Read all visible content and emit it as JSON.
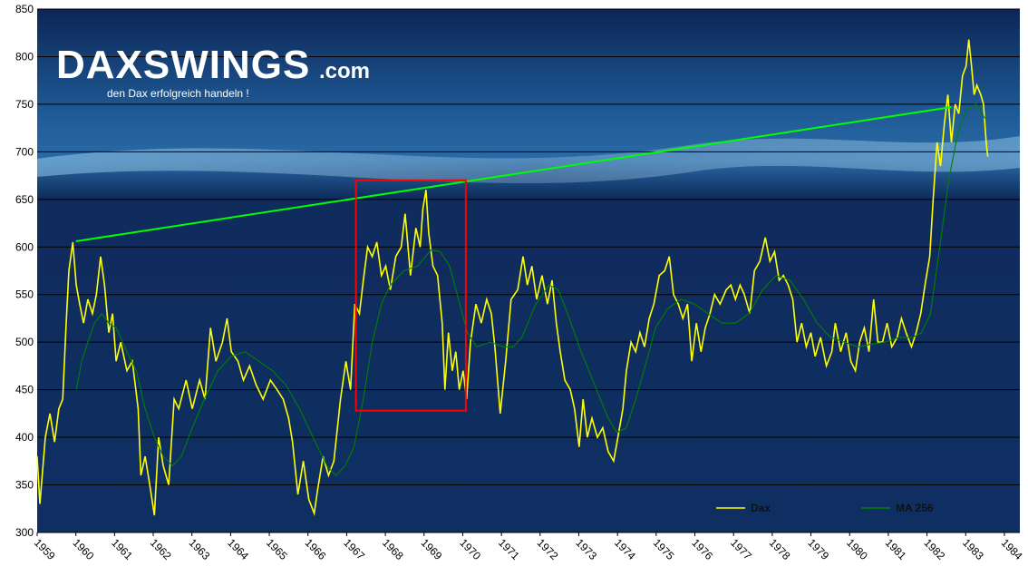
{
  "logo": {
    "name": "DAXSWINGS",
    "suffix": ".com",
    "tagline": "den Dax erfolgreich handeln !"
  },
  "chart_data": {
    "type": "line",
    "xlim": [
      1959,
      1984.4
    ],
    "xticks": [
      1959,
      1960,
      1961,
      1962,
      1963,
      1964,
      1965,
      1966,
      1967,
      1968,
      1969,
      1970,
      1971,
      1972,
      1973,
      1974,
      1975,
      1976,
      1977,
      1978,
      1979,
      1980,
      1981,
      1982,
      1983,
      1984
    ],
    "ylim": [
      300,
      850
    ],
    "yticks": [
      300,
      350,
      400,
      450,
      500,
      550,
      600,
      650,
      700,
      750,
      800,
      850
    ],
    "grid": true,
    "legend": "lower-right",
    "series": [
      {
        "name": "Dax",
        "color": "#ffff00",
        "x": [
          1959.0,
          1959.07,
          1959.21,
          1959.33,
          1959.45,
          1959.56,
          1959.66,
          1959.75,
          1959.82,
          1959.92,
          1960.01,
          1960.1,
          1960.2,
          1960.31,
          1960.43,
          1960.53,
          1960.64,
          1960.74,
          1960.85,
          1960.95,
          1961.04,
          1961.16,
          1961.32,
          1961.46,
          1961.61,
          1961.68,
          1961.79,
          1961.91,
          1962.03,
          1962.14,
          1962.26,
          1962.4,
          1962.54,
          1962.66,
          1962.85,
          1963.01,
          1963.2,
          1963.34,
          1963.48,
          1963.62,
          1963.79,
          1963.91,
          1964.02,
          1964.19,
          1964.33,
          1964.49,
          1964.66,
          1964.84,
          1965.03,
          1965.2,
          1965.36,
          1965.5,
          1965.6,
          1965.74,
          1965.88,
          1966.02,
          1966.16,
          1966.25,
          1966.39,
          1966.53,
          1966.67,
          1966.84,
          1966.98,
          1967.1,
          1967.21,
          1967.33,
          1967.43,
          1967.54,
          1967.66,
          1967.78,
          1967.9,
          1968.01,
          1968.13,
          1968.27,
          1968.41,
          1968.51,
          1968.65,
          1968.79,
          1968.9,
          1968.97,
          1969.05,
          1969.12,
          1969.23,
          1969.35,
          1969.47,
          1969.54,
          1969.63,
          1969.73,
          1969.82,
          1969.91,
          1970.01,
          1970.1,
          1970.2,
          1970.34,
          1970.48,
          1970.62,
          1970.74,
          1970.83,
          1970.97,
          1971.11,
          1971.25,
          1971.42,
          1971.56,
          1971.67,
          1971.79,
          1971.91,
          1972.05,
          1972.19,
          1972.31,
          1972.42,
          1972.52,
          1972.64,
          1972.78,
          1972.89,
          1973.01,
          1973.11,
          1973.22,
          1973.34,
          1973.48,
          1973.62,
          1973.76,
          1973.9,
          1973.99,
          1974.14,
          1974.23,
          1974.35,
          1974.47,
          1974.58,
          1974.7,
          1974.82,
          1974.94,
          1975.08,
          1975.22,
          1975.34,
          1975.45,
          1975.57,
          1975.69,
          1975.81,
          1975.92,
          1976.04,
          1976.16,
          1976.27,
          1976.39,
          1976.51,
          1976.65,
          1976.81,
          1976.93,
          1977.05,
          1977.17,
          1977.28,
          1977.42,
          1977.54,
          1977.68,
          1977.82,
          1977.94,
          1978.06,
          1978.18,
          1978.29,
          1978.41,
          1978.53,
          1978.64,
          1978.76,
          1978.88,
          1979.0,
          1979.11,
          1979.25,
          1979.4,
          1979.54,
          1979.63,
          1979.77,
          1979.91,
          1980.03,
          1980.15,
          1980.26,
          1980.38,
          1980.5,
          1980.62,
          1980.73,
          1980.85,
          1980.97,
          1981.09,
          1981.23,
          1981.34,
          1981.46,
          1981.6,
          1981.72,
          1981.84,
          1981.95,
          1982.07,
          1982.16,
          1982.26,
          1982.35,
          1982.45,
          1982.54,
          1982.63,
          1982.73,
          1982.82,
          1982.92,
          1983.01,
          1983.08,
          1983.15,
          1983.22,
          1983.29,
          1983.39,
          1983.46,
          1983.53,
          1983.57
        ],
        "values": [
          380,
          330,
          400,
          425,
          395,
          430,
          440,
          520,
          575,
          605,
          560,
          540,
          520,
          545,
          530,
          550,
          590,
          560,
          510,
          530,
          480,
          500,
          470,
          480,
          430,
          360,
          380,
          350,
          318,
          400,
          370,
          350,
          440,
          430,
          460,
          430,
          460,
          440,
          515,
          480,
          500,
          525,
          490,
          480,
          460,
          475,
          455,
          440,
          460,
          450,
          440,
          420,
          395,
          340,
          375,
          335,
          320,
          345,
          380,
          360,
          375,
          440,
          480,
          450,
          540,
          530,
          565,
          600,
          590,
          605,
          570,
          580,
          555,
          590,
          600,
          635,
          570,
          620,
          600,
          640,
          660,
          615,
          580,
          570,
          520,
          450,
          510,
          470,
          490,
          450,
          470,
          440,
          500,
          540,
          520,
          545,
          530,
          495,
          425,
          480,
          545,
          555,
          590,
          560,
          580,
          545,
          570,
          540,
          565,
          520,
          490,
          460,
          450,
          430,
          390,
          440,
          400,
          420,
          400,
          410,
          385,
          375,
          395,
          430,
          470,
          500,
          490,
          510,
          495,
          525,
          540,
          570,
          575,
          590,
          550,
          540,
          525,
          540,
          480,
          520,
          490,
          515,
          530,
          550,
          540,
          555,
          560,
          545,
          560,
          550,
          530,
          575,
          585,
          610,
          585,
          595,
          565,
          570,
          560,
          545,
          500,
          520,
          495,
          510,
          485,
          505,
          475,
          490,
          520,
          490,
          510,
          480,
          470,
          500,
          515,
          490,
          545,
          500,
          500,
          520,
          495,
          505,
          525,
          510,
          495,
          510,
          530,
          560,
          590,
          650,
          710,
          685,
          730,
          760,
          710,
          750,
          740,
          780,
          790,
          818,
          790,
          760,
          770,
          760,
          750,
          710,
          695
        ]
      },
      {
        "name": "MA 256",
        "color": "#008000",
        "x": [
          1960.01,
          1960.15,
          1960.31,
          1960.48,
          1960.67,
          1960.85,
          1961.04,
          1961.32,
          1961.56,
          1961.79,
          1962.03,
          1962.26,
          1962.5,
          1962.73,
          1963.01,
          1963.32,
          1963.67,
          1964.02,
          1964.37,
          1964.73,
          1965.08,
          1965.43,
          1965.78,
          1966.13,
          1966.49,
          1966.72,
          1966.96,
          1967.19,
          1967.43,
          1967.66,
          1967.9,
          1968.13,
          1968.48,
          1968.83,
          1969.19,
          1969.42,
          1969.66,
          1969.89,
          1970.12,
          1970.36,
          1970.71,
          1971.06,
          1971.3,
          1971.53,
          1971.89,
          1972.24,
          1972.47,
          1972.71,
          1973.06,
          1973.41,
          1973.76,
          1973.99,
          1974.23,
          1974.47,
          1974.75,
          1974.98,
          1975.29,
          1975.64,
          1975.99,
          1976.34,
          1976.7,
          1977.05,
          1977.4,
          1977.75,
          1978.1,
          1978.46,
          1978.81,
          1979.16,
          1979.51,
          1979.87,
          1980.22,
          1980.57,
          1980.92,
          1981.27,
          1981.63,
          1981.86,
          1982.09,
          1982.33,
          1982.56,
          1982.8,
          1983.03,
          1983.27,
          1983.5
        ],
        "values": [
          450,
          480,
          500,
          520,
          530,
          520,
          515,
          490,
          470,
          430,
          400,
          380,
          370,
          380,
          410,
          440,
          470,
          485,
          490,
          480,
          470,
          455,
          430,
          400,
          370,
          360,
          370,
          390,
          440,
          500,
          540,
          560,
          575,
          580,
          597,
          595,
          580,
          545,
          510,
          495,
          500,
          495,
          495,
          505,
          540,
          560,
          555,
          530,
          490,
          455,
          420,
          405,
          410,
          440,
          480,
          515,
          535,
          545,
          540,
          530,
          520,
          520,
          530,
          555,
          570,
          565,
          545,
          520,
          505,
          500,
          495,
          498,
          500,
          505,
          505,
          510,
          530,
          600,
          670,
          720,
          745,
          750,
          735
        ]
      }
    ],
    "trendline": {
      "color": "#00ff00",
      "x": [
        1960.0,
        1982.63
      ],
      "y": [
        606,
        747
      ]
    },
    "highlight": {
      "color": "#ff0000",
      "x": [
        1967.24,
        1970.08
      ],
      "y": [
        428,
        670
      ]
    }
  }
}
